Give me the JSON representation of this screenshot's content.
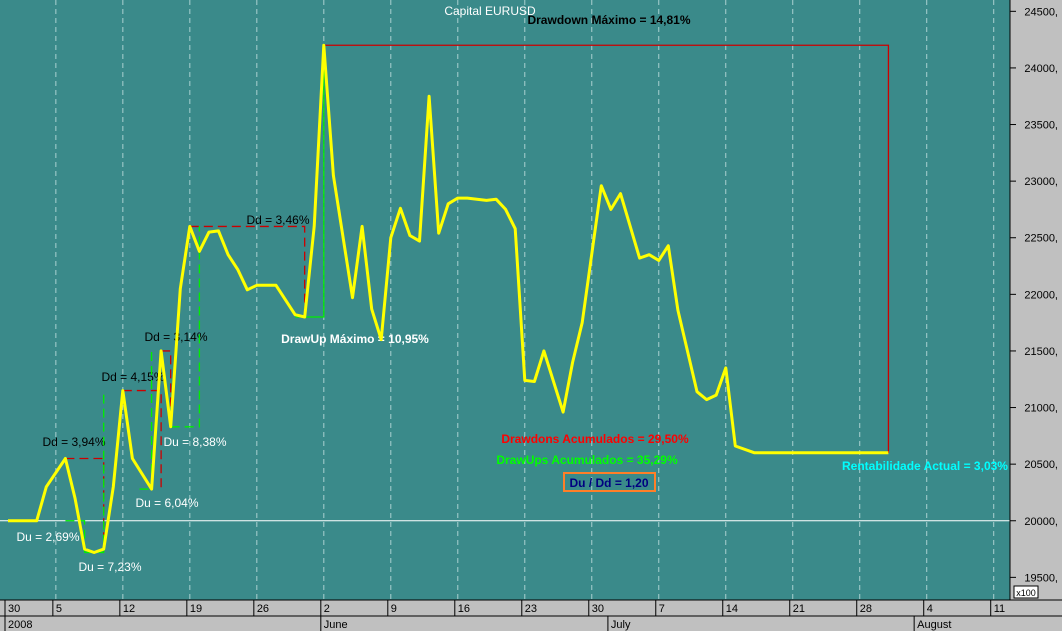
{
  "colors": {
    "plot_bg": "#3a8a8a",
    "axis_bg": "#c0c0c0",
    "series": "#ffff00",
    "drawdown": "#cc0000",
    "drawup": "#00ee00",
    "baseline": "#ffffff",
    "rentabilidad": "#00ffff",
    "ratio_text": "#000080",
    "ratio_border": "#ff7f27"
  },
  "chart_data": {
    "type": "line",
    "title": "Capital EURUSD",
    "ylim": [
      19300,
      24600
    ],
    "y_ticks": [
      {
        "v": 19500,
        "label": "19500,"
      },
      {
        "v": 20000,
        "label": "20000,"
      },
      {
        "v": 20500,
        "label": "20500,"
      },
      {
        "v": 21000,
        "label": "21000,"
      },
      {
        "v": 21500,
        "label": "21500,"
      },
      {
        "v": 22000,
        "label": "22000,"
      },
      {
        "v": 22500,
        "label": "22500,"
      },
      {
        "v": 23000,
        "label": "23000,"
      },
      {
        "v": 23500,
        "label": "23500,"
      },
      {
        "v": 24000,
        "label": "24000,"
      },
      {
        "v": 24500,
        "label": "24500,"
      }
    ],
    "y_scale_note": "x100",
    "baseline": 20000,
    "x_ticks": [
      {
        "t": 0,
        "label": "30"
      },
      {
        "t": 5,
        "label": "5"
      },
      {
        "t": 12,
        "label": "12"
      },
      {
        "t": 19,
        "label": "19"
      },
      {
        "t": 26,
        "label": "26"
      },
      {
        "t": 33,
        "label": "2"
      },
      {
        "t": 40,
        "label": "9"
      },
      {
        "t": 47,
        "label": "16"
      },
      {
        "t": 54,
        "label": "23"
      },
      {
        "t": 61,
        "label": "30"
      },
      {
        "t": 68,
        "label": "7"
      },
      {
        "t": 75,
        "label": "14"
      },
      {
        "t": 82,
        "label": "21"
      },
      {
        "t": 89,
        "label": "28"
      },
      {
        "t": 96,
        "label": "4"
      },
      {
        "t": 103,
        "label": "11"
      }
    ],
    "x_periods": [
      {
        "t": 0,
        "label": "2008"
      },
      {
        "t": 33,
        "label": "June"
      },
      {
        "t": 63,
        "label": "July"
      },
      {
        "t": 95,
        "label": "August"
      }
    ],
    "grid_dates": [
      5,
      12,
      19,
      26,
      33,
      40,
      47,
      54,
      61,
      68,
      75,
      82,
      89,
      96,
      103
    ],
    "series": [
      {
        "name": "Capital EURUSD",
        "t": [
          0,
          3,
          4,
          6,
          7,
          8,
          9,
          10,
          11,
          12,
          13,
          15,
          16,
          17,
          18,
          19,
          20,
          21,
          22,
          23,
          24,
          25,
          26,
          28,
          30,
          31,
          32,
          33,
          34,
          36,
          37,
          38,
          39,
          40,
          41,
          42,
          43,
          44,
          45,
          46,
          47,
          48,
          50,
          51,
          52,
          53,
          54,
          55,
          56,
          58,
          59,
          60,
          62,
          63,
          64,
          66,
          67,
          68,
          69,
          70,
          72,
          73,
          74,
          75,
          76,
          78,
          79,
          80,
          81,
          82,
          83,
          84,
          85,
          86,
          88,
          89,
          90,
          91,
          92
        ],
        "values": [
          20000,
          20000,
          20300,
          20550,
          20200,
          19750,
          19720,
          19750,
          20300,
          21150,
          20550,
          20280,
          21500,
          20830,
          22050,
          22600,
          22380,
          22550,
          22560,
          22350,
          22220,
          22040,
          22080,
          22080,
          21820,
          21800,
          22600,
          24200,
          23050,
          21970,
          22600,
          21870,
          21600,
          22500,
          22760,
          22520,
          22470,
          23750,
          22540,
          22800,
          22850,
          22850,
          22830,
          22840,
          22750,
          22580,
          21240,
          21230,
          21500,
          20960,
          21400,
          21750,
          22960,
          22750,
          22890,
          22320,
          22350,
          22300,
          22430,
          21860,
          21140,
          21070,
          21110,
          21350,
          20660,
          20600,
          20600,
          20600,
          20600,
          20600,
          20600,
          20600,
          20600,
          20600,
          20600,
          20600,
          20600,
          20600,
          20600
        ]
      }
    ],
    "drawdowns": [
      {
        "label": "Dd = 3,94%",
        "t1": 6,
        "t2": 10,
        "y": 20550,
        "y2": 19730
      },
      {
        "label": "Dd = 4,15%",
        "t1": 12,
        "t2": 16,
        "y": 21150,
        "y2": 20280
      },
      {
        "label": "Dd = 3,14%",
        "t1": 16,
        "t2": 17,
        "y": 21500,
        "y2": 20830
      },
      {
        "label": "Dd = 3,46%",
        "t1": 19,
        "t2": 31,
        "y": 22600,
        "y2": 21800
      }
    ],
    "drawups": [
      {
        "label": "Du = 2,69%",
        "t1": 6,
        "t2": 8,
        "y1": 20000,
        "y2": 19720
      },
      {
        "label": "Du = 7,23%",
        "t1": 8,
        "t2": 10,
        "y1": 19720,
        "y2": 21150
      },
      {
        "label": "Du = 6,04%",
        "t1": 15,
        "t2": 15,
        "y1": 20280,
        "y2": 21500
      },
      {
        "label": "Du = 8,38%",
        "t1": 17,
        "t2": 20,
        "y1": 20830,
        "y2": 22600
      },
      {
        "label": "DrawUp Máximo = 10,95%",
        "t1": 30,
        "t2": 33,
        "y1": 21800,
        "y2": 24200
      }
    ],
    "max_drawdown": {
      "label": "Drawdown Máximo = 14,81%",
      "t1": 33,
      "t2": 92,
      "y": 24200,
      "y2": 20600
    },
    "annotations": {
      "drawdowns_acumulados": "Drawdons Acumulados = 29,50%",
      "drawups_acumulados": "DrawUps Acumulados = 35,29%",
      "ratio": "Du / Dd = 1,20",
      "rentabilidad": "Rentabilidade Actual = 3,03%"
    }
  }
}
